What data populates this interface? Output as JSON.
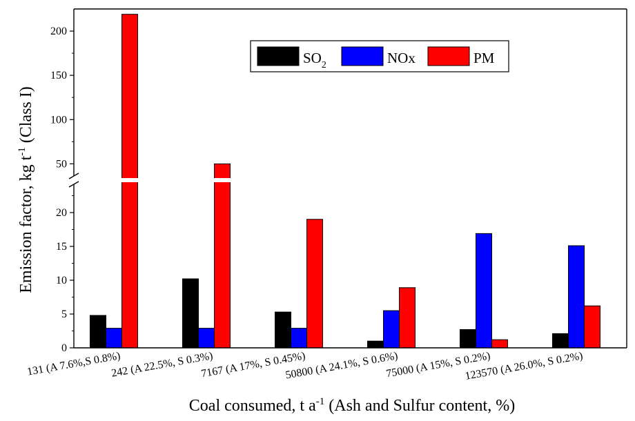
{
  "chart_data": {
    "type": "bar",
    "categories": [
      "131 (A 7.6%,S 0.8%)",
      "242 (A 22.5%, S 0.3%)",
      "7167 (A 17%, S 0.45%)",
      "50800 (A 24.1%, S 0.6%)",
      "75000 (A 15%, S 0.2%)",
      "123570 (A 26.0%, S 0.2%)"
    ],
    "series": [
      {
        "name": "SO2",
        "legend_main": "SO",
        "legend_sub": "2",
        "color": "#000000",
        "values": [
          4.8,
          10.2,
          5.3,
          1.0,
          2.7,
          2.1
        ]
      },
      {
        "name": "NOx",
        "legend_main": "NOx",
        "legend_sub": "",
        "color": "#0000ff",
        "values": [
          2.9,
          2.9,
          2.9,
          5.5,
          16.9,
          15.1
        ]
      },
      {
        "name": "PM",
        "legend_main": "PM",
        "legend_sub": "",
        "color": "#ff0000",
        "values": [
          219,
          50,
          19.0,
          8.9,
          1.2,
          6.2
        ]
      }
    ],
    "y_axis": {
      "broken": true,
      "lower_range": [
        0,
        25
      ],
      "upper_range": [
        30,
        225
      ],
      "lower_ticks": [
        "0",
        "5",
        "10",
        "15",
        "20"
      ],
      "upper_ticks": [
        "50",
        "100",
        "150",
        "200"
      ]
    },
    "ylabel": {
      "main": "Emission factor, kg t",
      "sup": "-1",
      "tail": " (Class I)"
    },
    "xlabel": {
      "main": "Coal consumed, t a",
      "sup": "-1",
      "tail": " (Ash and Sulfur content, %)"
    },
    "legend_position": "top-center",
    "grid": false
  }
}
